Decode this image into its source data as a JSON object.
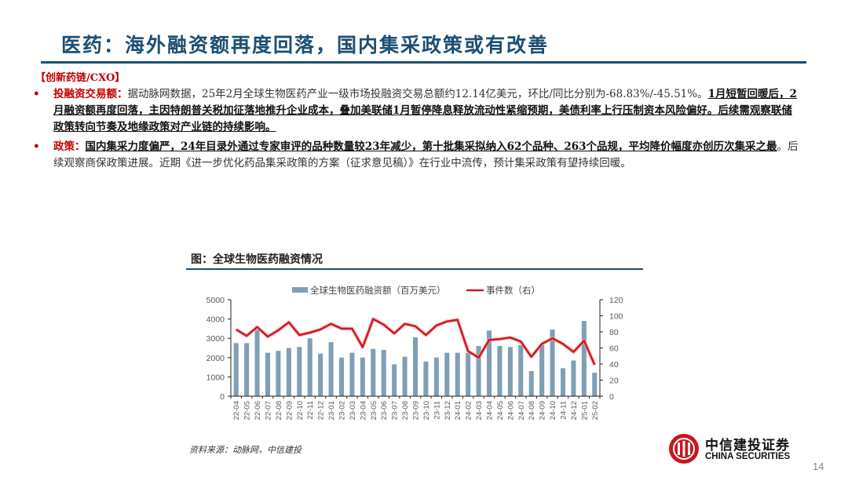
{
  "slide": {
    "title": "医药：海外融资额再度回落，国内集采政策或有改善",
    "section_tag": "【创新药链/CXO】",
    "page_number": "14"
  },
  "bullets": [
    {
      "lead": "投融资交易额：",
      "text_plain_1": "据动脉网数据，25年2月全球生物医药产业一级市场投融资交易总额约12.14亿美元，环比/同比分别为-68.83%/-45.51%。",
      "text_underlined": "1月短暂回暖后，2月融资额再度回落，主因特朗普关税加征落地推升企业成本，叠加美联储1月暂停降息释放流动性紧缩预期，美债利率上行压制资本风险偏好。后续需观察联储政策转向节奏及地缘政策对产业链的持续影响。",
      "text_plain_2": ""
    },
    {
      "lead": "政策：",
      "text_plain_1": "",
      "text_underlined": "国内集采力度偏严，24年目录外通过专家审评的品种数量较23年减少，第十批集采拟纳入62个品种、263个品规，平均降价幅度亦创历次集采之最",
      "text_plain_2": "。后续观察商保政策进展。近期《进一步优化药品集采政策的方案（征求意见稿）》在行业中流传，预计集采政策有望持续回暖。"
    }
  ],
  "figure": {
    "title": "图：全球生物医药融资情况",
    "source": "资料来源：动脉网，中信建投"
  },
  "logo": {
    "cn": "中信建投证券",
    "en": "CHINA SECURITIES"
  },
  "colors": {
    "title": "#1c4f74",
    "accent_red": "#c00000",
    "bar": "#7f9fb5",
    "line": "#d0161d"
  },
  "chart_data": {
    "type": "bar+line",
    "title": "全球生物医药融资情况",
    "categories": [
      "22-04",
      "22-05",
      "22-06",
      "22-07",
      "22-08",
      "22-09",
      "22-10",
      "22-11",
      "22-12",
      "23-01",
      "23-02",
      "23-03",
      "23-04",
      "23-05",
      "23-06",
      "23-07",
      "23-08",
      "23-09",
      "23-10",
      "23-11",
      "23-12",
      "24-01",
      "24-02",
      "24-03",
      "24-04",
      "24-05",
      "24-06",
      "24-07",
      "24-08",
      "24-09",
      "24-10",
      "24-11",
      "24-12",
      "25-01",
      "25-02"
    ],
    "series": [
      {
        "name": "全球生物医药融资额（百万美元）",
        "type": "bar",
        "axis": "left",
        "values": [
          2750,
          2750,
          3450,
          2250,
          2350,
          2500,
          2550,
          3000,
          2200,
          2800,
          2000,
          2250,
          2000,
          2450,
          2400,
          1650,
          2050,
          3050,
          1800,
          2000,
          2250,
          2250,
          2250,
          2600,
          3400,
          2600,
          2550,
          2650,
          1300,
          2650,
          3450,
          1450,
          1850,
          3900,
          1214
        ]
      },
      {
        "name": "事件数（右）",
        "type": "line",
        "axis": "right",
        "values": [
          83,
          75,
          86,
          74,
          82,
          92,
          76,
          79,
          83,
          90,
          84,
          84,
          61,
          96,
          89,
          78,
          90,
          87,
          76,
          88,
          93,
          95,
          56,
          48,
          70,
          71,
          73,
          68,
          49,
          65,
          72,
          65,
          55,
          69,
          39
        ]
      }
    ],
    "left_axis": {
      "min": 0,
      "max": 5000,
      "ticks": [
        "0",
        "1000",
        "2000",
        "3000",
        "4000",
        "5000"
      ]
    },
    "right_axis": {
      "min": 0,
      "max": 120,
      "ticks": [
        "0",
        "20",
        "40",
        "60",
        "80",
        "100",
        "120"
      ]
    },
    "legend": [
      "全球生物医药融资额（百万美元）",
      "事件数（右）"
    ],
    "legend_position": "top",
    "grid": false
  }
}
